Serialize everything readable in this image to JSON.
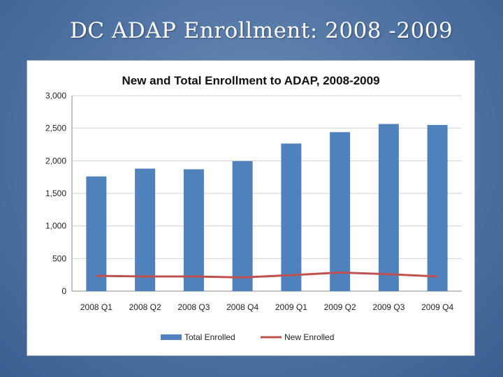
{
  "slide": {
    "title": "DC ADAP Enrollment: 2008 -2009"
  },
  "chart_data": {
    "type": "bar",
    "title": "New and Total Enrollment to ADAP, 2008-2009",
    "categories": [
      "2008 Q1",
      "2008 Q2",
      "2008 Q3",
      "2008 Q4",
      "2009 Q1",
      "2009 Q2",
      "2009 Q3",
      "2009 Q4"
    ],
    "series": [
      {
        "name": "Total Enrolled",
        "kind": "bar",
        "color": "#4f81bd",
        "values": [
          1760,
          1880,
          1870,
          1995,
          2265,
          2440,
          2565,
          2550
        ]
      },
      {
        "name": "New Enrolled",
        "kind": "line",
        "color": "#c0504d",
        "values": [
          235,
          225,
          225,
          210,
          245,
          285,
          260,
          225
        ]
      }
    ],
    "ylim": [
      0,
      3000
    ],
    "yticks": [
      0,
      500,
      1000,
      1500,
      2000,
      2500,
      3000
    ],
    "ytick_labels": [
      "0",
      "500",
      "1,000",
      "1,500",
      "2,000",
      "2,500",
      "3,000"
    ],
    "xlabel": "",
    "ylabel": "",
    "grid": true,
    "legend_position": "bottom"
  }
}
